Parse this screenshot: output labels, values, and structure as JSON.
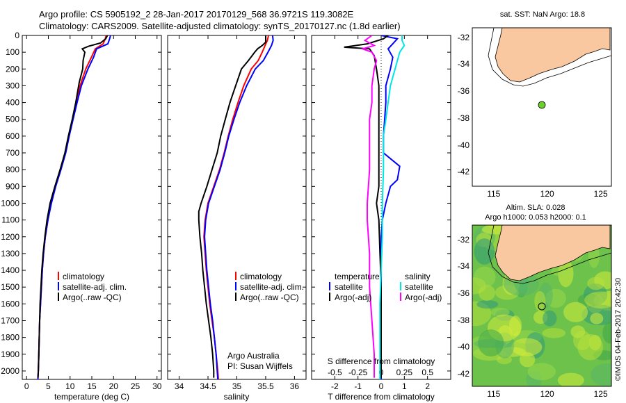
{
  "header": {
    "line1": "Argo profile: CS 5905192_2 28-Jan-2017 20170129_568 36.9721S 119.3082E",
    "line2": "Climatology: CARS2009. Satellite-adjusted climatology: synTS_20170127.nc (1.8d earlier)"
  },
  "colors": {
    "climatology": "#ff0000",
    "satellite": "#0000ff",
    "argo": "#000000",
    "sat_salinity": "#00e5e5",
    "argo_salinity": "#ff00ff",
    "land": "#f9c8a0",
    "ocean_map": "#ffffff"
  },
  "chart_data": [
    {
      "id": "temperature",
      "type": "line",
      "xlabel": "temperature (deg C)",
      "xlim": [
        -1,
        31
      ],
      "xticks": [
        0,
        5,
        10,
        15,
        20,
        25,
        30
      ],
      "ylim": [
        2050,
        0
      ],
      "yticks": [
        0,
        100,
        200,
        300,
        400,
        500,
        600,
        700,
        800,
        900,
        1000,
        1100,
        1200,
        1300,
        1400,
        1500,
        1600,
        1700,
        1800,
        1900,
        2000
      ],
      "legend": [
        "climatology",
        "satellite-adj. clim.",
        "Argo(..raw -QC)"
      ],
      "series": [
        {
          "name": "climatology",
          "color": "#ff0000",
          "points": [
            [
              18.3,
              0
            ],
            [
              18.1,
              20
            ],
            [
              17.6,
              50
            ],
            [
              15.8,
              80
            ],
            [
              14.9,
              130
            ],
            [
              13.6,
              200
            ],
            [
              12.3,
              300
            ],
            [
              11.4,
              400
            ],
            [
              10.6,
              500
            ],
            [
              9.7,
              600
            ],
            [
              8.9,
              700
            ],
            [
              7.8,
              800
            ],
            [
              6.6,
              900
            ],
            [
              5.6,
              1000
            ],
            [
              4.9,
              1100
            ],
            [
              4.3,
              1200
            ],
            [
              3.9,
              1300
            ],
            [
              3.6,
              1400
            ],
            [
              3.4,
              1500
            ],
            [
              3.2,
              1600
            ],
            [
              3.0,
              1700
            ],
            [
              2.9,
              1800
            ],
            [
              2.8,
              1900
            ],
            [
              2.7,
              2000
            ],
            [
              2.6,
              2050
            ]
          ]
        },
        {
          "name": "satellite-adj. clim.",
          "color": "#0000ff",
          "points": [
            [
              19.3,
              0
            ],
            [
              19.1,
              20
            ],
            [
              18.7,
              50
            ],
            [
              16.1,
              80
            ],
            [
              15.4,
              130
            ],
            [
              14.1,
              200
            ],
            [
              12.6,
              300
            ],
            [
              11.6,
              400
            ],
            [
              10.7,
              500
            ],
            [
              9.8,
              600
            ],
            [
              9.0,
              700
            ],
            [
              7.9,
              800
            ],
            [
              6.7,
              900
            ],
            [
              5.7,
              1000
            ],
            [
              4.9,
              1100
            ],
            [
              4.3,
              1200
            ],
            [
              3.9,
              1300
            ],
            [
              3.6,
              1400
            ],
            [
              3.4,
              1500
            ],
            [
              3.2,
              1600
            ],
            [
              3.0,
              1700
            ],
            [
              2.9,
              1800
            ],
            [
              2.8,
              1900
            ],
            [
              2.7,
              2000
            ],
            [
              2.6,
              2050
            ]
          ]
        },
        {
          "name": "Argo(..raw -QC)",
          "color": "#000000",
          "points": [
            [
              18.6,
              0
            ],
            [
              18.2,
              20
            ],
            [
              17.0,
              45
            ],
            [
              14.2,
              65
            ],
            [
              12.8,
              80
            ],
            [
              13.4,
              100
            ],
            [
              13.0,
              150
            ],
            [
              12.9,
              200
            ],
            [
              12.1,
              280
            ],
            [
              11.3,
              400
            ],
            [
              10.5,
              500
            ],
            [
              9.6,
              600
            ],
            [
              8.8,
              700
            ],
            [
              7.7,
              800
            ],
            [
              6.5,
              900
            ],
            [
              5.4,
              1000
            ],
            [
              4.7,
              1100
            ],
            [
              4.2,
              1200
            ],
            [
              3.8,
              1300
            ],
            [
              3.5,
              1400
            ],
            [
              3.3,
              1500
            ],
            [
              3.1,
              1600
            ],
            [
              3.0,
              1700
            ],
            [
              2.9,
              1800
            ],
            [
              2.8,
              1900
            ],
            [
              2.7,
              2000
            ],
            [
              2.6,
              2040
            ]
          ]
        }
      ]
    },
    {
      "id": "salinity",
      "type": "line",
      "xlabel": "salinity",
      "xlim": [
        33.8,
        36.2
      ],
      "xticks": [
        34,
        34.5,
        35,
        35.5,
        36
      ],
      "ylim": [
        2050,
        0
      ],
      "legend": [
        "climatology",
        "satellite-adj. clim.",
        "Argo(..raw -QC)"
      ],
      "annotation": [
        "Argo Australia",
        "PI: Susan Wijffels"
      ],
      "series": [
        {
          "name": "climatology",
          "color": "#ff0000",
          "points": [
            [
              35.55,
              0
            ],
            [
              35.53,
              30
            ],
            [
              35.49,
              60
            ],
            [
              35.44,
              100
            ],
            [
              35.37,
              150
            ],
            [
              35.25,
              200
            ],
            [
              35.12,
              300
            ],
            [
              35.02,
              400
            ],
            [
              34.93,
              500
            ],
            [
              34.85,
              600
            ],
            [
              34.78,
              700
            ],
            [
              34.7,
              800
            ],
            [
              34.6,
              900
            ],
            [
              34.5,
              1000
            ],
            [
              34.45,
              1100
            ],
            [
              34.43,
              1200
            ],
            [
              34.45,
              1300
            ],
            [
              34.47,
              1400
            ],
            [
              34.5,
              1500
            ],
            [
              34.53,
              1600
            ],
            [
              34.57,
              1700
            ],
            [
              34.61,
              1800
            ],
            [
              34.64,
              1900
            ],
            [
              34.67,
              2000
            ],
            [
              34.68,
              2050
            ]
          ]
        },
        {
          "name": "satellite-adj. clim.",
          "color": "#0000ff",
          "points": [
            [
              35.62,
              0
            ],
            [
              35.63,
              30
            ],
            [
              35.6,
              60
            ],
            [
              35.54,
              100
            ],
            [
              35.46,
              150
            ],
            [
              35.32,
              200
            ],
            [
              35.17,
              300
            ],
            [
              35.05,
              400
            ],
            [
              34.95,
              500
            ],
            [
              34.86,
              600
            ],
            [
              34.79,
              700
            ],
            [
              34.71,
              800
            ],
            [
              34.61,
              900
            ],
            [
              34.51,
              1000
            ],
            [
              34.46,
              1100
            ],
            [
              34.44,
              1200
            ],
            [
              34.46,
              1300
            ],
            [
              34.48,
              1400
            ],
            [
              34.51,
              1500
            ],
            [
              34.54,
              1600
            ],
            [
              34.58,
              1700
            ],
            [
              34.61,
              1800
            ],
            [
              34.64,
              1900
            ],
            [
              34.66,
              2000
            ],
            [
              34.67,
              2050
            ]
          ]
        },
        {
          "name": "Argo(..raw -QC)",
          "color": "#000000",
          "points": [
            [
              35.5,
              0
            ],
            [
              35.5,
              40
            ],
            [
              35.44,
              60
            ],
            [
              35.36,
              80
            ],
            [
              35.31,
              100
            ],
            [
              35.2,
              150
            ],
            [
              35.08,
              200
            ],
            [
              34.98,
              300
            ],
            [
              34.88,
              400
            ],
            [
              34.8,
              500
            ],
            [
              34.72,
              600
            ],
            [
              34.66,
              700
            ],
            [
              34.57,
              800
            ],
            [
              34.48,
              900
            ],
            [
              34.38,
              1000
            ],
            [
              34.34,
              1050
            ],
            [
              34.34,
              1100
            ],
            [
              34.36,
              1200
            ],
            [
              34.39,
              1300
            ],
            [
              34.41,
              1400
            ],
            [
              34.44,
              1500
            ],
            [
              34.47,
              1600
            ],
            [
              34.51,
              1700
            ],
            [
              34.55,
              1800
            ],
            [
              34.58,
              1900
            ],
            [
              34.6,
              2000
            ],
            [
              34.6,
              2040
            ]
          ]
        }
      ]
    },
    {
      "id": "difference",
      "type": "line",
      "xlabel": "T difference from climatology",
      "top_axis_label": "S difference from climatology",
      "xlim": [
        -3,
        3
      ],
      "xticks": [
        -2,
        -1,
        0,
        1,
        2
      ],
      "s_ticks": [
        "-0.5",
        "-0.25",
        "0",
        "0.25",
        "0.5"
      ],
      "ylim": [
        2050,
        0
      ],
      "legend_temperature": [
        "temperature",
        "satellite",
        "Argo(-adj)"
      ],
      "legend_salinity": [
        "salinity",
        "satellite",
        "Argo(-adj)"
      ],
      "series": [
        {
          "name": "satellite",
          "group": "temperature",
          "color": "#0000ff",
          "points": [
            [
              0,
              0
            ],
            [
              0.7,
              20
            ],
            [
              0.5,
              50
            ],
            [
              0.3,
              80
            ],
            [
              0.5,
              130
            ],
            [
              0.4,
              200
            ],
            [
              0.2,
              300
            ],
            [
              0.2,
              400
            ],
            [
              0.15,
              500
            ],
            [
              0.1,
              600
            ],
            [
              0.1,
              700
            ],
            [
              0.8,
              780
            ],
            [
              0.7,
              860
            ],
            [
              0.4,
              900
            ],
            [
              0.2,
              1000
            ],
            [
              0.05,
              1100
            ],
            [
              0,
              1200
            ],
            [
              0,
              1300
            ],
            [
              0,
              1500
            ],
            [
              0,
              1700
            ],
            [
              0,
              1900
            ],
            [
              0,
              2050
            ]
          ]
        },
        {
          "name": "Argo(-adj)",
          "group": "temperature",
          "color": "#000000",
          "points": [
            [
              0.3,
              0
            ],
            [
              0.1,
              20
            ],
            [
              -0.6,
              50
            ],
            [
              -1.6,
              70
            ],
            [
              -0.5,
              80
            ],
            [
              -0.3,
              120
            ],
            [
              -0.2,
              200
            ],
            [
              -0.1,
              300
            ],
            [
              -0.1,
              400
            ],
            [
              -0.1,
              500
            ],
            [
              -0.1,
              700
            ],
            [
              -0.1,
              900
            ],
            [
              -0.2,
              1000
            ],
            [
              -0.1,
              1100
            ],
            [
              -0.05,
              1300
            ],
            [
              0,
              1500
            ],
            [
              0,
              1700
            ],
            [
              0,
              1900
            ],
            [
              0,
              2040
            ]
          ]
        },
        {
          "name": "satellite",
          "group": "salinity",
          "color": "#00e5e5",
          "points": [
            [
              0.9,
              0
            ],
            [
              0.9,
              30
            ],
            [
              1.0,
              60
            ],
            [
              0.8,
              100
            ],
            [
              0.7,
              150
            ],
            [
              0.6,
              200
            ],
            [
              0.4,
              300
            ],
            [
              0.3,
              400
            ],
            [
              0.2,
              500
            ],
            [
              0.1,
              600
            ],
            [
              0.1,
              800
            ],
            [
              0.05,
              1000
            ],
            [
              0.05,
              1200
            ],
            [
              0,
              1400
            ],
            [
              -0.05,
              1600
            ],
            [
              -0.05,
              1800
            ],
            [
              -0.05,
              2050
            ]
          ]
        },
        {
          "name": "Argo(-adj)",
          "group": "salinity",
          "color": "#ff00ff",
          "points": [
            [
              -0.4,
              0
            ],
            [
              -0.7,
              30
            ],
            [
              -0.3,
              60
            ],
            [
              -0.8,
              80
            ],
            [
              -0.4,
              100
            ],
            [
              -0.2,
              150
            ],
            [
              -0.3,
              200
            ],
            [
              -0.4,
              300
            ],
            [
              -0.4,
              400
            ],
            [
              -0.5,
              500
            ],
            [
              -0.5,
              600
            ],
            [
              -0.5,
              800
            ],
            [
              -0.6,
              1000
            ],
            [
              -0.6,
              1100
            ],
            [
              -0.5,
              1300
            ],
            [
              -0.5,
              1500
            ],
            [
              -0.4,
              1700
            ],
            [
              -0.3,
              1900
            ],
            [
              -0.3,
              2040
            ]
          ]
        }
      ]
    }
  ],
  "map_sst": {
    "title": "sat. SST: NaN Argo: 18.8",
    "xticks": [
      "115",
      "120",
      "125"
    ],
    "yticks": [
      "-32",
      "-34",
      "-36",
      "-38",
      "-40",
      "-42"
    ],
    "float_lon": 119.3,
    "float_lat": -36.97
  },
  "map_sla": {
    "title1": "Altim. SLA: 0.028",
    "title2": "Argo h1000: 0.053 h2000: 0.1",
    "xticks": [
      "115",
      "120",
      "125"
    ],
    "yticks": [
      "-32",
      "-34",
      "-36",
      "-38",
      "-40",
      "-42"
    ]
  },
  "stamp": "©IMOS 04-Feb-2017 20:42:30"
}
